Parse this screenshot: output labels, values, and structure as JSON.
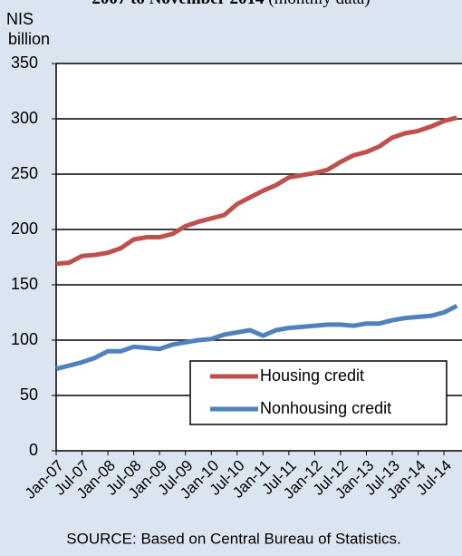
{
  "chart_data": {
    "type": "line",
    "title": "2007 to November 2014",
    "title_note": "(monthly data)",
    "y_label": [
      "NIS",
      "billion"
    ],
    "source": "SOURCE: Based on Central Bureau of Statistics.",
    "categories": [
      "Jan-07",
      null,
      "Jul-07",
      null,
      "Jan-08",
      null,
      "Jul-08",
      null,
      "Jan-09",
      null,
      "Jul-09",
      null,
      "Jan-10",
      null,
      "Jul-10",
      null,
      "Jan-11",
      null,
      "Jul-11",
      null,
      "Jan-12",
      null,
      "Jul-12",
      null,
      "Jan-13",
      null,
      "Jul-13",
      null,
      "Jan-14",
      null,
      "Jul-14",
      null
    ],
    "series": [
      {
        "name": "Housing credit",
        "color": "#c0504d",
        "values": [
          169,
          170,
          176,
          177,
          179,
          183,
          191,
          193,
          193,
          196,
          203,
          207,
          210,
          213,
          223,
          229,
          235,
          240,
          247,
          249,
          251,
          254,
          261,
          267,
          270,
          275,
          283,
          287,
          289,
          293,
          298,
          301
        ]
      },
      {
        "name": "Nonhousing credit",
        "color": "#4f81bd",
        "values": [
          74,
          77,
          80,
          84,
          90,
          90,
          94,
          93,
          92,
          96,
          98,
          100,
          101,
          105,
          107,
          109,
          104,
          109,
          111,
          112,
          113,
          114,
          114,
          113,
          115,
          115,
          118,
          120,
          121,
          122,
          125,
          131
        ]
      }
    ],
    "ylim": [
      0,
      350
    ],
    "yticks": [
      0,
      50,
      100,
      150,
      200,
      250,
      300,
      350
    ],
    "grid": true
  }
}
